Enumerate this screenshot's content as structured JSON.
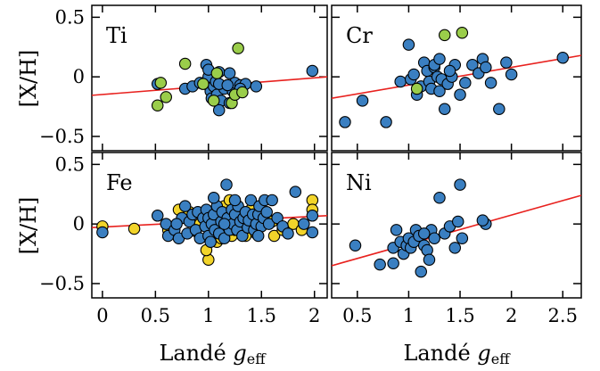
{
  "chart_data": [
    {
      "type": "scatter",
      "panel_label": "Ti",
      "ylabel": "[X/H]",
      "xlim": [
        -0.1,
        2.12
      ],
      "ylim": [
        -0.62,
        0.6
      ],
      "yticks": [
        "0.5",
        "0",
        "−0.5"
      ],
      "ytick_values": [
        0.5,
        0,
        -0.5
      ],
      "fit_line": {
        "color": "#e8211e",
        "x": [
          -0.1,
          2.12
        ],
        "y": [
          -0.155,
          0.0
        ]
      },
      "series": [
        {
          "color": "#3a7fc1",
          "points": [
            [
              0.52,
              -0.06
            ],
            [
              0.78,
              -0.1
            ],
            [
              0.85,
              -0.08
            ],
            [
              0.92,
              -0.05
            ],
            [
              0.98,
              0.1
            ],
            [
              1.0,
              0.0
            ],
            [
              1.02,
              -0.12
            ],
            [
              1.03,
              -0.18
            ],
            [
              1.05,
              -0.08
            ],
            [
              1.07,
              -0.04
            ],
            [
              1.08,
              -0.15
            ],
            [
              1.1,
              0.04
            ],
            [
              1.12,
              -0.2
            ],
            [
              1.15,
              -0.1
            ],
            [
              1.2,
              0.03
            ],
            [
              1.23,
              -0.12
            ],
            [
              1.25,
              -0.05
            ],
            [
              1.3,
              -0.07
            ],
            [
              1.35,
              -0.06
            ],
            [
              1.1,
              -0.28
            ],
            [
              1.2,
              -0.22
            ],
            [
              1.3,
              -0.1
            ],
            [
              1.45,
              -0.08
            ],
            [
              1.98,
              0.05
            ],
            [
              1.1,
              -0.06
            ],
            [
              1.0,
              0.06
            ],
            [
              1.18,
              -0.07
            ]
          ]
        },
        {
          "color": "#9acd4a",
          "points": [
            [
              0.52,
              -0.24
            ],
            [
              0.6,
              -0.17
            ],
            [
              0.78,
              0.11
            ],
            [
              0.95,
              -0.06
            ],
            [
              1.05,
              -0.2
            ],
            [
              1.08,
              0.03
            ],
            [
              1.22,
              -0.22
            ],
            [
              1.25,
              -0.15
            ],
            [
              1.28,
              0.24
            ],
            [
              1.32,
              -0.13
            ],
            [
              0.55,
              -0.05
            ]
          ]
        }
      ]
    },
    {
      "type": "scatter",
      "panel_label": "Cr",
      "xlim": [
        0.25,
        2.68
      ],
      "ylim": [
        -0.62,
        0.6
      ],
      "fit_line": {
        "color": "#e8211e",
        "x": [
          0.25,
          2.68
        ],
        "y": [
          -0.18,
          0.18
        ]
      },
      "series": [
        {
          "color": "#3a7fc1",
          "points": [
            [
              0.38,
              -0.38
            ],
            [
              0.55,
              -0.2
            ],
            [
              0.78,
              -0.38
            ],
            [
              0.92,
              -0.04
            ],
            [
              1.0,
              0.27
            ],
            [
              1.02,
              -0.02
            ],
            [
              1.05,
              0.02
            ],
            [
              1.08,
              -0.15
            ],
            [
              1.12,
              -0.08
            ],
            [
              1.15,
              0.12
            ],
            [
              1.18,
              0.05
            ],
            [
              1.2,
              -0.04
            ],
            [
              1.22,
              -0.1
            ],
            [
              1.25,
              0.08
            ],
            [
              1.28,
              0.0
            ],
            [
              1.3,
              -0.12
            ],
            [
              1.32,
              -0.02
            ],
            [
              1.35,
              -0.27
            ],
            [
              1.38,
              -0.06
            ],
            [
              1.42,
              0.0
            ],
            [
              1.45,
              0.1
            ],
            [
              1.5,
              -0.15
            ],
            [
              1.55,
              -0.05
            ],
            [
              1.62,
              0.1
            ],
            [
              1.68,
              0.03
            ],
            [
              1.72,
              0.15
            ],
            [
              1.75,
              0.08
            ],
            [
              1.8,
              -0.05
            ],
            [
              1.88,
              -0.27
            ],
            [
              1.95,
              0.12
            ],
            [
              2.0,
              0.02
            ],
            [
              2.5,
              0.16
            ],
            [
              1.25,
              0.1
            ],
            [
              1.4,
              0.05
            ],
            [
              1.3,
              0.15
            ]
          ]
        },
        {
          "color": "#9acd4a",
          "points": [
            [
              1.08,
              -0.1
            ],
            [
              1.35,
              0.35
            ],
            [
              1.52,
              0.37
            ]
          ]
        }
      ]
    },
    {
      "type": "scatter",
      "panel_label": "Fe",
      "xlabel": "Landé g_eff",
      "ylabel": "[X/H]",
      "xlim": [
        -0.1,
        2.12
      ],
      "ylim": [
        -0.62,
        0.6
      ],
      "xticks": [
        "0",
        "0.5",
        "1",
        "1.5",
        "2"
      ],
      "xtick_values": [
        0,
        0.5,
        1,
        1.5,
        2
      ],
      "yticks": [
        "0.5",
        "0",
        "−0.5"
      ],
      "ytick_values": [
        0.5,
        0,
        -0.5
      ],
      "fit_line": {
        "color": "#e8211e",
        "x": [
          -0.1,
          2.12
        ],
        "y": [
          -0.03,
          0.07
        ]
      },
      "series": [
        {
          "color": "#f2d42a",
          "points": [
            [
              0.0,
              -0.02
            ],
            [
              0.3,
              -0.04
            ],
            [
              0.62,
              -0.05
            ],
            [
              0.72,
              0.12
            ],
            [
              0.82,
              0.1
            ],
            [
              0.88,
              -0.06
            ],
            [
              0.92,
              0.0
            ],
            [
              1.0,
              -0.3
            ],
            [
              1.02,
              0.05
            ],
            [
              1.05,
              0.1
            ],
            [
              1.08,
              -0.15
            ],
            [
              1.1,
              0.02
            ],
            [
              1.15,
              0.15
            ],
            [
              1.18,
              0.05
            ],
            [
              1.22,
              -0.1
            ],
            [
              1.25,
              -0.05
            ],
            [
              1.28,
              0.12
            ],
            [
              1.32,
              0.0
            ],
            [
              1.35,
              -0.1
            ],
            [
              1.38,
              0.08
            ],
            [
              1.42,
              0.02
            ],
            [
              1.45,
              -0.08
            ],
            [
              1.5,
              0.1
            ],
            [
              1.55,
              0.05
            ],
            [
              1.62,
              -0.1
            ],
            [
              1.7,
              -0.05
            ],
            [
              1.8,
              0.0
            ],
            [
              1.88,
              -0.05
            ],
            [
              1.98,
              0.2
            ],
            [
              1.98,
              0.12
            ],
            [
              0.98,
              -0.22
            ],
            [
              1.12,
              -0.12
            ],
            [
              1.2,
              0.2
            ],
            [
              1.4,
              0.12
            ],
            [
              1.6,
              0.02
            ]
          ]
        },
        {
          "color": "#3a7fc1",
          "points": [
            [
              0.0,
              -0.07
            ],
            [
              0.52,
              0.07
            ],
            [
              0.6,
              0.0
            ],
            [
              0.62,
              -0.1
            ],
            [
              0.68,
              -0.05
            ],
            [
              0.72,
              -0.12
            ],
            [
              0.75,
              0.05
            ],
            [
              0.78,
              0.15
            ],
            [
              0.8,
              -0.08
            ],
            [
              0.82,
              0.02
            ],
            [
              0.85,
              0.08
            ],
            [
              0.88,
              -0.05
            ],
            [
              0.9,
              0.1
            ],
            [
              0.92,
              -0.12
            ],
            [
              0.95,
              0.05
            ],
            [
              0.97,
              -0.02
            ],
            [
              0.98,
              0.12
            ],
            [
              1.0,
              -0.1
            ],
            [
              1.0,
              0.05
            ],
            [
              1.02,
              -0.15
            ],
            [
              1.03,
              0.0
            ],
            [
              1.05,
              0.08
            ],
            [
              1.06,
              -0.05
            ],
            [
              1.08,
              0.15
            ],
            [
              1.1,
              -0.08
            ],
            [
              1.12,
              0.02
            ],
            [
              1.13,
              0.1
            ],
            [
              1.15,
              -0.12
            ],
            [
              1.17,
              0.33
            ],
            [
              1.18,
              0.05
            ],
            [
              1.2,
              -0.05
            ],
            [
              1.22,
              0.12
            ],
            [
              1.23,
              0.0
            ],
            [
              1.25,
              0.08
            ],
            [
              1.27,
              -0.05
            ],
            [
              1.28,
              0.15
            ],
            [
              1.3,
              0.02
            ],
            [
              1.32,
              -0.1
            ],
            [
              1.33,
              0.05
            ],
            [
              1.35,
              0.1
            ],
            [
              1.37,
              -0.03
            ],
            [
              1.38,
              0.03
            ],
            [
              1.4,
              0.2
            ],
            [
              1.42,
              0.08
            ],
            [
              1.43,
              -0.05
            ],
            [
              1.45,
              0.0
            ],
            [
              1.47,
              0.08
            ],
            [
              1.48,
              0.15
            ],
            [
              1.5,
              -0.02
            ],
            [
              1.52,
              0.05
            ],
            [
              1.53,
              0.2
            ],
            [
              1.55,
              0.1
            ],
            [
              1.57,
              0.0
            ],
            [
              1.6,
              0.2
            ],
            [
              1.65,
              0.05
            ],
            [
              1.7,
              -0.02
            ],
            [
              1.75,
              -0.08
            ],
            [
              1.82,
              0.27
            ],
            [
              1.9,
              0.0
            ],
            [
              1.98,
              0.07
            ],
            [
              1.98,
              -0.07
            ],
            [
              1.05,
              0.22
            ],
            [
              1.25,
              0.2
            ],
            [
              1.47,
              -0.1
            ],
            [
              0.7,
              0.0
            ],
            [
              1.15,
              0.0
            ]
          ]
        }
      ]
    },
    {
      "type": "scatter",
      "panel_label": "Ni",
      "xlabel": "Landé g_eff",
      "xlim": [
        0.25,
        2.68
      ],
      "ylim": [
        -0.62,
        0.6
      ],
      "xticks": [
        "0.5",
        "1",
        "1.5",
        "2",
        "2.5"
      ],
      "xtick_values": [
        0.5,
        1,
        1.5,
        2,
        2.5
      ],
      "fit_line": {
        "color": "#e8211e",
        "x": [
          0.25,
          2.68
        ],
        "y": [
          -0.35,
          0.24
        ]
      },
      "series": [
        {
          "color": "#3a7fc1",
          "points": [
            [
              0.48,
              -0.18
            ],
            [
              0.72,
              -0.34
            ],
            [
              0.85,
              -0.33
            ],
            [
              0.85,
              -0.2
            ],
            [
              0.88,
              -0.05
            ],
            [
              0.92,
              -0.15
            ],
            [
              0.95,
              -0.25
            ],
            [
              0.98,
              -0.18
            ],
            [
              1.0,
              -0.12
            ],
            [
              1.02,
              -0.2
            ],
            [
              1.05,
              -0.15
            ],
            [
              1.07,
              -0.05
            ],
            [
              1.1,
              -0.1
            ],
            [
              1.12,
              -0.4
            ],
            [
              1.15,
              -0.18
            ],
            [
              1.18,
              -0.22
            ],
            [
              1.22,
              -0.05
            ],
            [
              1.25,
              -0.12
            ],
            [
              1.3,
              0.22
            ],
            [
              1.35,
              -0.08
            ],
            [
              1.4,
              -0.02
            ],
            [
              1.45,
              -0.2
            ],
            [
              1.48,
              0.02
            ],
            [
              1.5,
              0.33
            ],
            [
              1.52,
              -0.12
            ],
            [
              1.75,
              0.0
            ],
            [
              1.72,
              0.03
            ],
            [
              1.15,
              -0.08
            ],
            [
              1.2,
              -0.3
            ]
          ]
        }
      ]
    }
  ]
}
